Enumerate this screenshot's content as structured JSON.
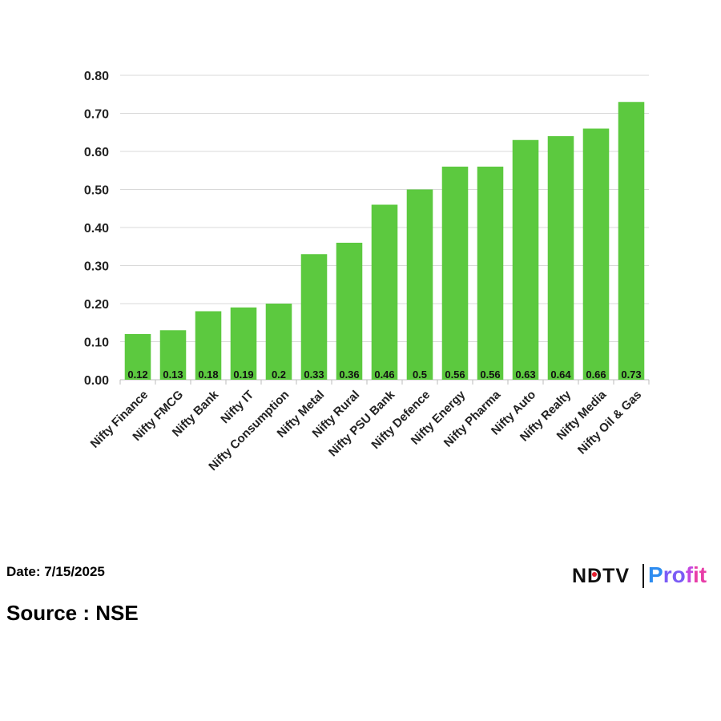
{
  "chart_data": {
    "type": "bar",
    "title": "",
    "xlabel": "",
    "ylabel": "",
    "categories": [
      "Nifty Finance",
      "Nifty FMCG",
      "Nifty Bank",
      "Nifty IT",
      "Nifty Consumption",
      "Nifty Metal",
      "Nifty Rural",
      "Nifty PSU Bank",
      "Nifty Defence",
      "Nifty Energy",
      "Nifty Pharma",
      "Nifty Auto",
      "Nifty Realty",
      "Nifty Media",
      "Nifty Oil & Gas"
    ],
    "values": [
      0.12,
      0.13,
      0.18,
      0.19,
      0.2,
      0.33,
      0.36,
      0.46,
      0.5,
      0.56,
      0.56,
      0.63,
      0.64,
      0.66,
      0.73
    ],
    "value_labels": [
      "0.12",
      "0.13",
      "0.18",
      "0.19",
      "0.2",
      "0.33",
      "0.36",
      "0.46",
      "0.5",
      "0.56",
      "0.56",
      "0.63",
      "0.64",
      "0.66",
      "0.73"
    ],
    "ylim": [
      0,
      0.8
    ],
    "yticks": [
      "0.00",
      "0.10",
      "0.20",
      "0.30",
      "0.40",
      "0.50",
      "0.60",
      "0.70",
      "0.80"
    ],
    "grid": true,
    "bar_color": "#5cc93f"
  },
  "footer": {
    "date": "Date: 7/15/2025",
    "source": "Source : NSE"
  },
  "brand": {
    "ndtv": "NDTV",
    "profit": "Profit"
  }
}
